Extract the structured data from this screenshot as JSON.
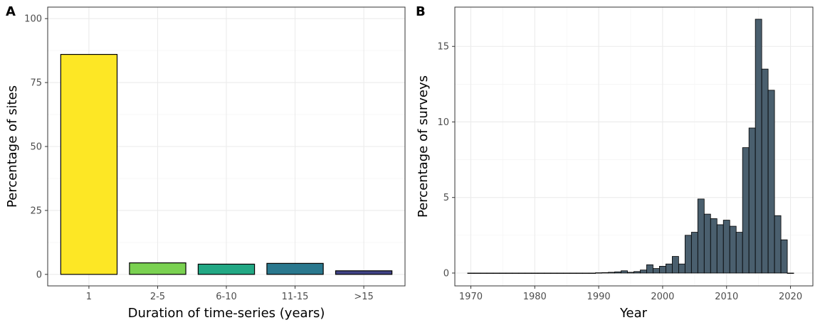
{
  "chart_data": [
    {
      "type": "bar",
      "panel_label": "A",
      "categories": [
        "1",
        "2-5",
        "6-10",
        "11-15",
        ">15"
      ],
      "values": [
        86,
        4.5,
        4,
        4.3,
        1.4
      ],
      "colors": [
        "#FDE725",
        "#7AD151",
        "#22A884",
        "#2A788E",
        "#414487"
      ],
      "bar_outline": "#000000",
      "xlabel": "Duration of time-series (years)",
      "ylabel": "Percentage of sites",
      "ylim": [
        -4.5,
        104.5
      ],
      "yticks": [
        0,
        25,
        50,
        75,
        100
      ],
      "grid": true
    },
    {
      "type": "bar",
      "subtype": "histogram",
      "panel_label": "B",
      "x": [
        1970,
        1971,
        1972,
        1973,
        1974,
        1975,
        1976,
        1977,
        1978,
        1979,
        1980,
        1981,
        1982,
        1983,
        1984,
        1985,
        1986,
        1987,
        1988,
        1989,
        1990,
        1991,
        1992,
        1993,
        1994,
        1995,
        1996,
        1997,
        1998,
        1999,
        2000,
        2001,
        2002,
        2003,
        2004,
        2005,
        2006,
        2007,
        2008,
        2009,
        2010,
        2011,
        2012,
        2013,
        2014,
        2015,
        2016,
        2017,
        2018,
        2019,
        2020
      ],
      "values": [
        0,
        0,
        0,
        0,
        0,
        0,
        0,
        0,
        0,
        0,
        0,
        0,
        0,
        0,
        0,
        0,
        0,
        0,
        0,
        0,
        0.02,
        0.03,
        0.05,
        0.08,
        0.15,
        0.05,
        0.1,
        0.2,
        0.55,
        0.3,
        0.45,
        0.6,
        1.1,
        0.6,
        2.5,
        2.7,
        4.9,
        3.9,
        3.6,
        3.2,
        3.5,
        3.1,
        2.7,
        8.3,
        9.6,
        16.8,
        13.5,
        12.1,
        3.8,
        2.2,
        0
      ],
      "bar_color": "#4A5F6E",
      "bar_outline": "#000000",
      "xlabel": "Year",
      "ylabel": "Percentage of surveys",
      "xlim": [
        1967.5,
        2023.5
      ],
      "xticks": [
        1970,
        1980,
        1990,
        2000,
        2010,
        2020
      ],
      "ylim": [
        -0.85,
        17.6
      ],
      "yticks": [
        0,
        5,
        10,
        15
      ],
      "grid": true
    }
  ]
}
